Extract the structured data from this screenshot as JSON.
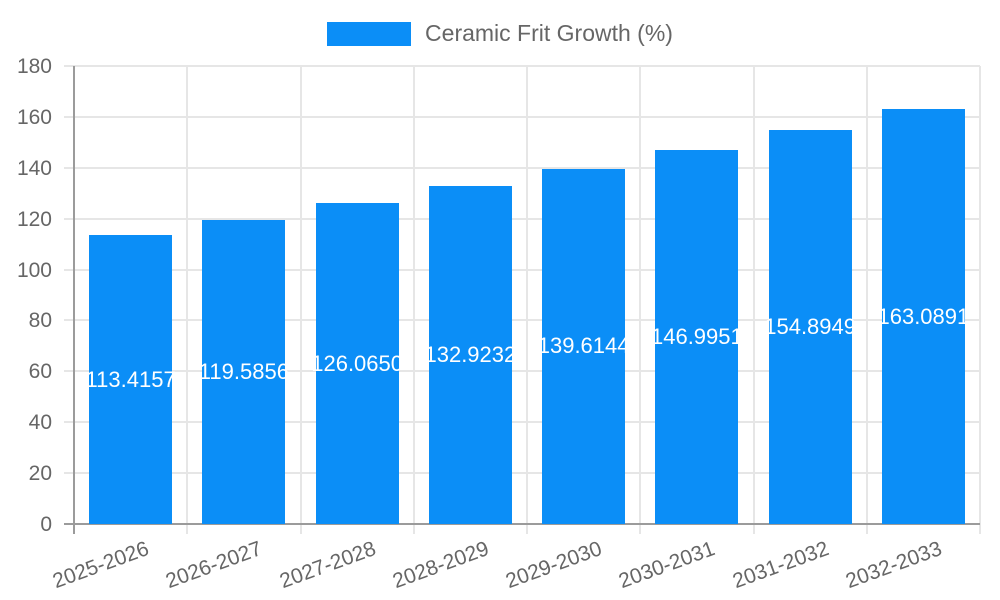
{
  "chart_data": {
    "type": "bar",
    "title": "Ceramic Frit Growth (%)",
    "series_name": "Ceramic Frit Growth (%)",
    "legend_position": "top",
    "categories": [
      "2025-2026",
      "2026-2027",
      "2027-2028",
      "2028-2029",
      "2029-2030",
      "2030-2031",
      "2031-2032",
      "2032-2033"
    ],
    "values": [
      113.4157,
      119.5856,
      126.065,
      132.9232,
      139.6144,
      146.9951,
      154.8949,
      163.0891
    ],
    "value_labels": [
      "113.4157",
      "119.5856",
      "126.0650",
      "132.9232",
      "139.6144",
      "146.9951",
      "154.8949",
      "163.0891"
    ],
    "xlabel": "",
    "ylabel": "",
    "ylim": [
      0,
      180
    ],
    "ytick_step": 20,
    "yticks": [
      0,
      20,
      40,
      60,
      80,
      100,
      120,
      140,
      160,
      180
    ],
    "grid": true,
    "x_label_rotation_deg": -20,
    "colors": {
      "bar": "#0b8ef7",
      "grid": "#e6e6e6",
      "axis": "#9b9b9b",
      "text": "#666666",
      "value_label": "#ffffff",
      "background": "#ffffff"
    }
  }
}
